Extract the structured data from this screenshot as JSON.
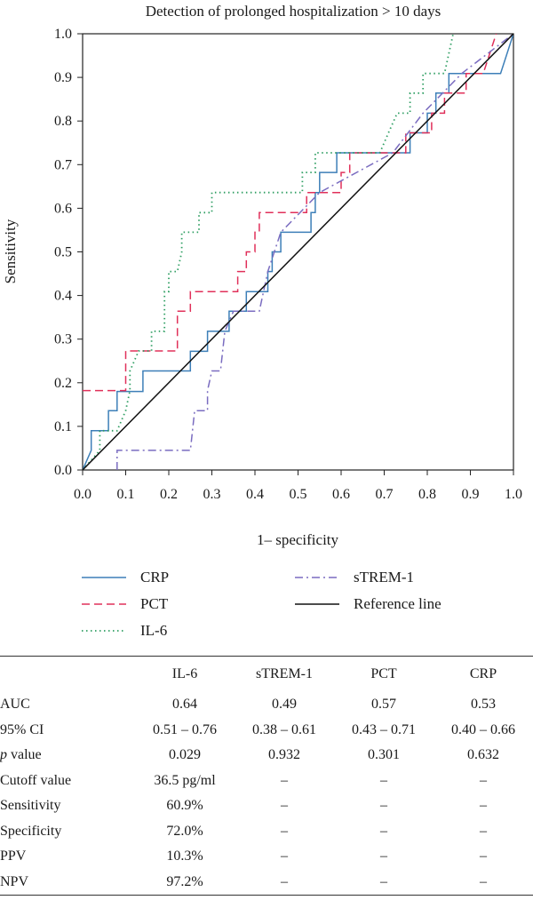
{
  "chart_data": {
    "type": "line",
    "title": "Detection of prolonged hospitalization > 10 days",
    "xlabel": "1– specificity",
    "ylabel": "Sensitivity",
    "xlim": [
      0,
      1
    ],
    "ylim": [
      0,
      1
    ],
    "xticks": [
      "0.0",
      "0.1",
      "0.2",
      "0.3",
      "0.4",
      "0.5",
      "0.6",
      "0.7",
      "0.8",
      "0.9",
      "1.0"
    ],
    "yticks": [
      "0.0",
      "0.1",
      "0.2",
      "0.3",
      "0.4",
      "0.5",
      "0.6",
      "0.7",
      "0.8",
      "0.9",
      "1.0"
    ],
    "legend_position": "bottom",
    "series": [
      {
        "name": "CRP",
        "color": "#3d7fb8",
        "dash": "solid",
        "points": [
          [
            0,
            0
          ],
          [
            0.02,
            0.045
          ],
          [
            0.02,
            0.045
          ],
          [
            0.02,
            0.09
          ],
          [
            0.06,
            0.09
          ],
          [
            0.06,
            0.136
          ],
          [
            0.08,
            0.136
          ],
          [
            0.08,
            0.18
          ],
          [
            0.14,
            0.18
          ],
          [
            0.14,
            0.227
          ],
          [
            0.25,
            0.227
          ],
          [
            0.25,
            0.272
          ],
          [
            0.29,
            0.272
          ],
          [
            0.29,
            0.318
          ],
          [
            0.34,
            0.318
          ],
          [
            0.34,
            0.364
          ],
          [
            0.38,
            0.364
          ],
          [
            0.38,
            0.409
          ],
          [
            0.43,
            0.409
          ],
          [
            0.43,
            0.455
          ],
          [
            0.44,
            0.455
          ],
          [
            0.44,
            0.5
          ],
          [
            0.46,
            0.5
          ],
          [
            0.46,
            0.545
          ],
          [
            0.53,
            0.545
          ],
          [
            0.53,
            0.59
          ],
          [
            0.54,
            0.59
          ],
          [
            0.54,
            0.636
          ],
          [
            0.55,
            0.636
          ],
          [
            0.55,
            0.682
          ],
          [
            0.59,
            0.682
          ],
          [
            0.59,
            0.727
          ],
          [
            0.76,
            0.727
          ],
          [
            0.76,
            0.773
          ],
          [
            0.8,
            0.773
          ],
          [
            0.8,
            0.818
          ],
          [
            0.82,
            0.818
          ],
          [
            0.82,
            0.864
          ],
          [
            0.85,
            0.864
          ],
          [
            0.85,
            0.909
          ],
          [
            0.97,
            0.909
          ],
          [
            1.0,
            1.0
          ]
        ]
      },
      {
        "name": "PCT",
        "color": "#e0305a",
        "dash": "long",
        "points": [
          [
            0,
            0.182
          ],
          [
            0.1,
            0.182
          ],
          [
            0.1,
            0.273
          ],
          [
            0.22,
            0.273
          ],
          [
            0.22,
            0.364
          ],
          [
            0.25,
            0.364
          ],
          [
            0.25,
            0.409
          ],
          [
            0.36,
            0.409
          ],
          [
            0.36,
            0.455
          ],
          [
            0.38,
            0.455
          ],
          [
            0.38,
            0.5
          ],
          [
            0.4,
            0.5
          ],
          [
            0.4,
            0.545
          ],
          [
            0.41,
            0.545
          ],
          [
            0.41,
            0.59
          ],
          [
            0.52,
            0.59
          ],
          [
            0.52,
            0.636
          ],
          [
            0.6,
            0.636
          ],
          [
            0.6,
            0.682
          ],
          [
            0.62,
            0.682
          ],
          [
            0.62,
            0.727
          ],
          [
            0.75,
            0.727
          ],
          [
            0.75,
            0.773
          ],
          [
            0.81,
            0.773
          ],
          [
            0.81,
            0.818
          ],
          [
            0.84,
            0.818
          ],
          [
            0.84,
            0.864
          ],
          [
            0.89,
            0.864
          ],
          [
            0.89,
            0.909
          ],
          [
            0.93,
            0.909
          ],
          [
            0.96,
            1.0
          ]
        ]
      },
      {
        "name": "IL-6",
        "color": "#2e9e62",
        "dash": "dotted",
        "points": [
          [
            0,
            0
          ],
          [
            0.04,
            0.045
          ],
          [
            0.04,
            0.09
          ],
          [
            0.08,
            0.09
          ],
          [
            0.1,
            0.136
          ],
          [
            0.11,
            0.182
          ],
          [
            0.11,
            0.227
          ],
          [
            0.13,
            0.273
          ],
          [
            0.16,
            0.273
          ],
          [
            0.16,
            0.318
          ],
          [
            0.19,
            0.318
          ],
          [
            0.19,
            0.409
          ],
          [
            0.2,
            0.409
          ],
          [
            0.2,
            0.455
          ],
          [
            0.22,
            0.455
          ],
          [
            0.23,
            0.5
          ],
          [
            0.23,
            0.545
          ],
          [
            0.27,
            0.545
          ],
          [
            0.27,
            0.59
          ],
          [
            0.3,
            0.59
          ],
          [
            0.3,
            0.636
          ],
          [
            0.51,
            0.636
          ],
          [
            0.51,
            0.682
          ],
          [
            0.54,
            0.682
          ],
          [
            0.54,
            0.727
          ],
          [
            0.69,
            0.727
          ],
          [
            0.71,
            0.773
          ],
          [
            0.73,
            0.818
          ],
          [
            0.76,
            0.818
          ],
          [
            0.76,
            0.864
          ],
          [
            0.79,
            0.864
          ],
          [
            0.79,
            0.909
          ],
          [
            0.84,
            0.909
          ],
          [
            0.86,
            1.0
          ]
        ]
      },
      {
        "name": "sTREM-1",
        "color": "#7a6cc0",
        "dash": "dashdot",
        "points": [
          [
            0.08,
            0
          ],
          [
            0.08,
            0.045
          ],
          [
            0.25,
            0.045
          ],
          [
            0.26,
            0.136
          ],
          [
            0.29,
            0.136
          ],
          [
            0.29,
            0.182
          ],
          [
            0.3,
            0.227
          ],
          [
            0.32,
            0.227
          ],
          [
            0.33,
            0.318
          ],
          [
            0.35,
            0.364
          ],
          [
            0.41,
            0.364
          ],
          [
            0.43,
            0.455
          ],
          [
            0.46,
            0.545
          ],
          [
            0.55,
            0.636
          ],
          [
            0.72,
            0.727
          ],
          [
            0.79,
            0.818
          ],
          [
            0.88,
            0.909
          ],
          [
            1.0,
            1.0
          ]
        ]
      },
      {
        "name": "Reference line",
        "color": "#111111",
        "dash": "solid",
        "points": [
          [
            0,
            0
          ],
          [
            1,
            1
          ]
        ]
      }
    ]
  },
  "table": {
    "headers": [
      "",
      "IL-6",
      "sTREM-1",
      "PCT",
      "CRP"
    ],
    "rows": [
      {
        "label": "AUC",
        "italic_prefix": "",
        "cells": [
          "0.64",
          "0.49",
          "0.57",
          "0.53"
        ]
      },
      {
        "label": "95% CI",
        "italic_prefix": "",
        "cells": [
          "0.51 – 0.76",
          "0.38 – 0.61",
          "0.43 – 0.71",
          "0.40 – 0.66"
        ]
      },
      {
        "label": " value",
        "italic_prefix": "p",
        "cells": [
          "0.029",
          "0.932",
          "0.301",
          "0.632"
        ]
      },
      {
        "label": "Cutoff value",
        "italic_prefix": "",
        "cells": [
          "36.5 pg/ml",
          "–",
          "–",
          "–"
        ]
      },
      {
        "label": "Sensitivity",
        "italic_prefix": "",
        "cells": [
          "60.9%",
          "–",
          "–",
          "–"
        ]
      },
      {
        "label": "Specificity",
        "italic_prefix": "",
        "cells": [
          "72.0%",
          "–",
          "–",
          "–"
        ]
      },
      {
        "label": "PPV",
        "italic_prefix": "",
        "cells": [
          "10.3%",
          "–",
          "–",
          "–"
        ]
      },
      {
        "label": "NPV",
        "italic_prefix": "",
        "cells": [
          "97.2%",
          "–",
          "–",
          "–"
        ]
      }
    ]
  }
}
